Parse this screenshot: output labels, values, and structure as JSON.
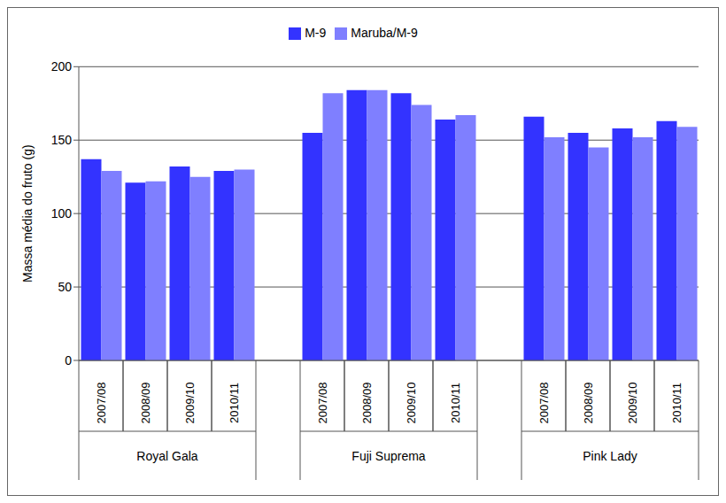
{
  "chart_data": {
    "type": "bar",
    "y_label": "Massa média do fruto (g)",
    "categories": [
      "2007/08",
      "2008/09",
      "2009/10",
      "2010/11",
      null,
      "2007/08",
      "2008/09",
      "2009/10",
      "2010/11",
      null,
      "2007/08",
      "2008/09",
      "2009/10",
      "2010/11"
    ],
    "groups": [
      "Royal Gala",
      "Fuji Suprema",
      "Pink Lady"
    ],
    "series": [
      {
        "name": "M-9",
        "color": "#3333ff",
        "values": [
          137,
          121,
          132,
          129,
          null,
          155,
          184,
          182,
          164,
          null,
          166,
          155,
          158,
          163
        ]
      },
      {
        "name": "Maruba/M-9",
        "color": "#7f7fff",
        "values": [
          129,
          122,
          125,
          130,
          null,
          182,
          184,
          174,
          167,
          null,
          152,
          145,
          152,
          159
        ]
      }
    ],
    "ylim": [
      0,
      200
    ],
    "yticks": [
      0,
      50,
      100,
      150,
      200
    ],
    "grid": true,
    "legend": "top"
  }
}
